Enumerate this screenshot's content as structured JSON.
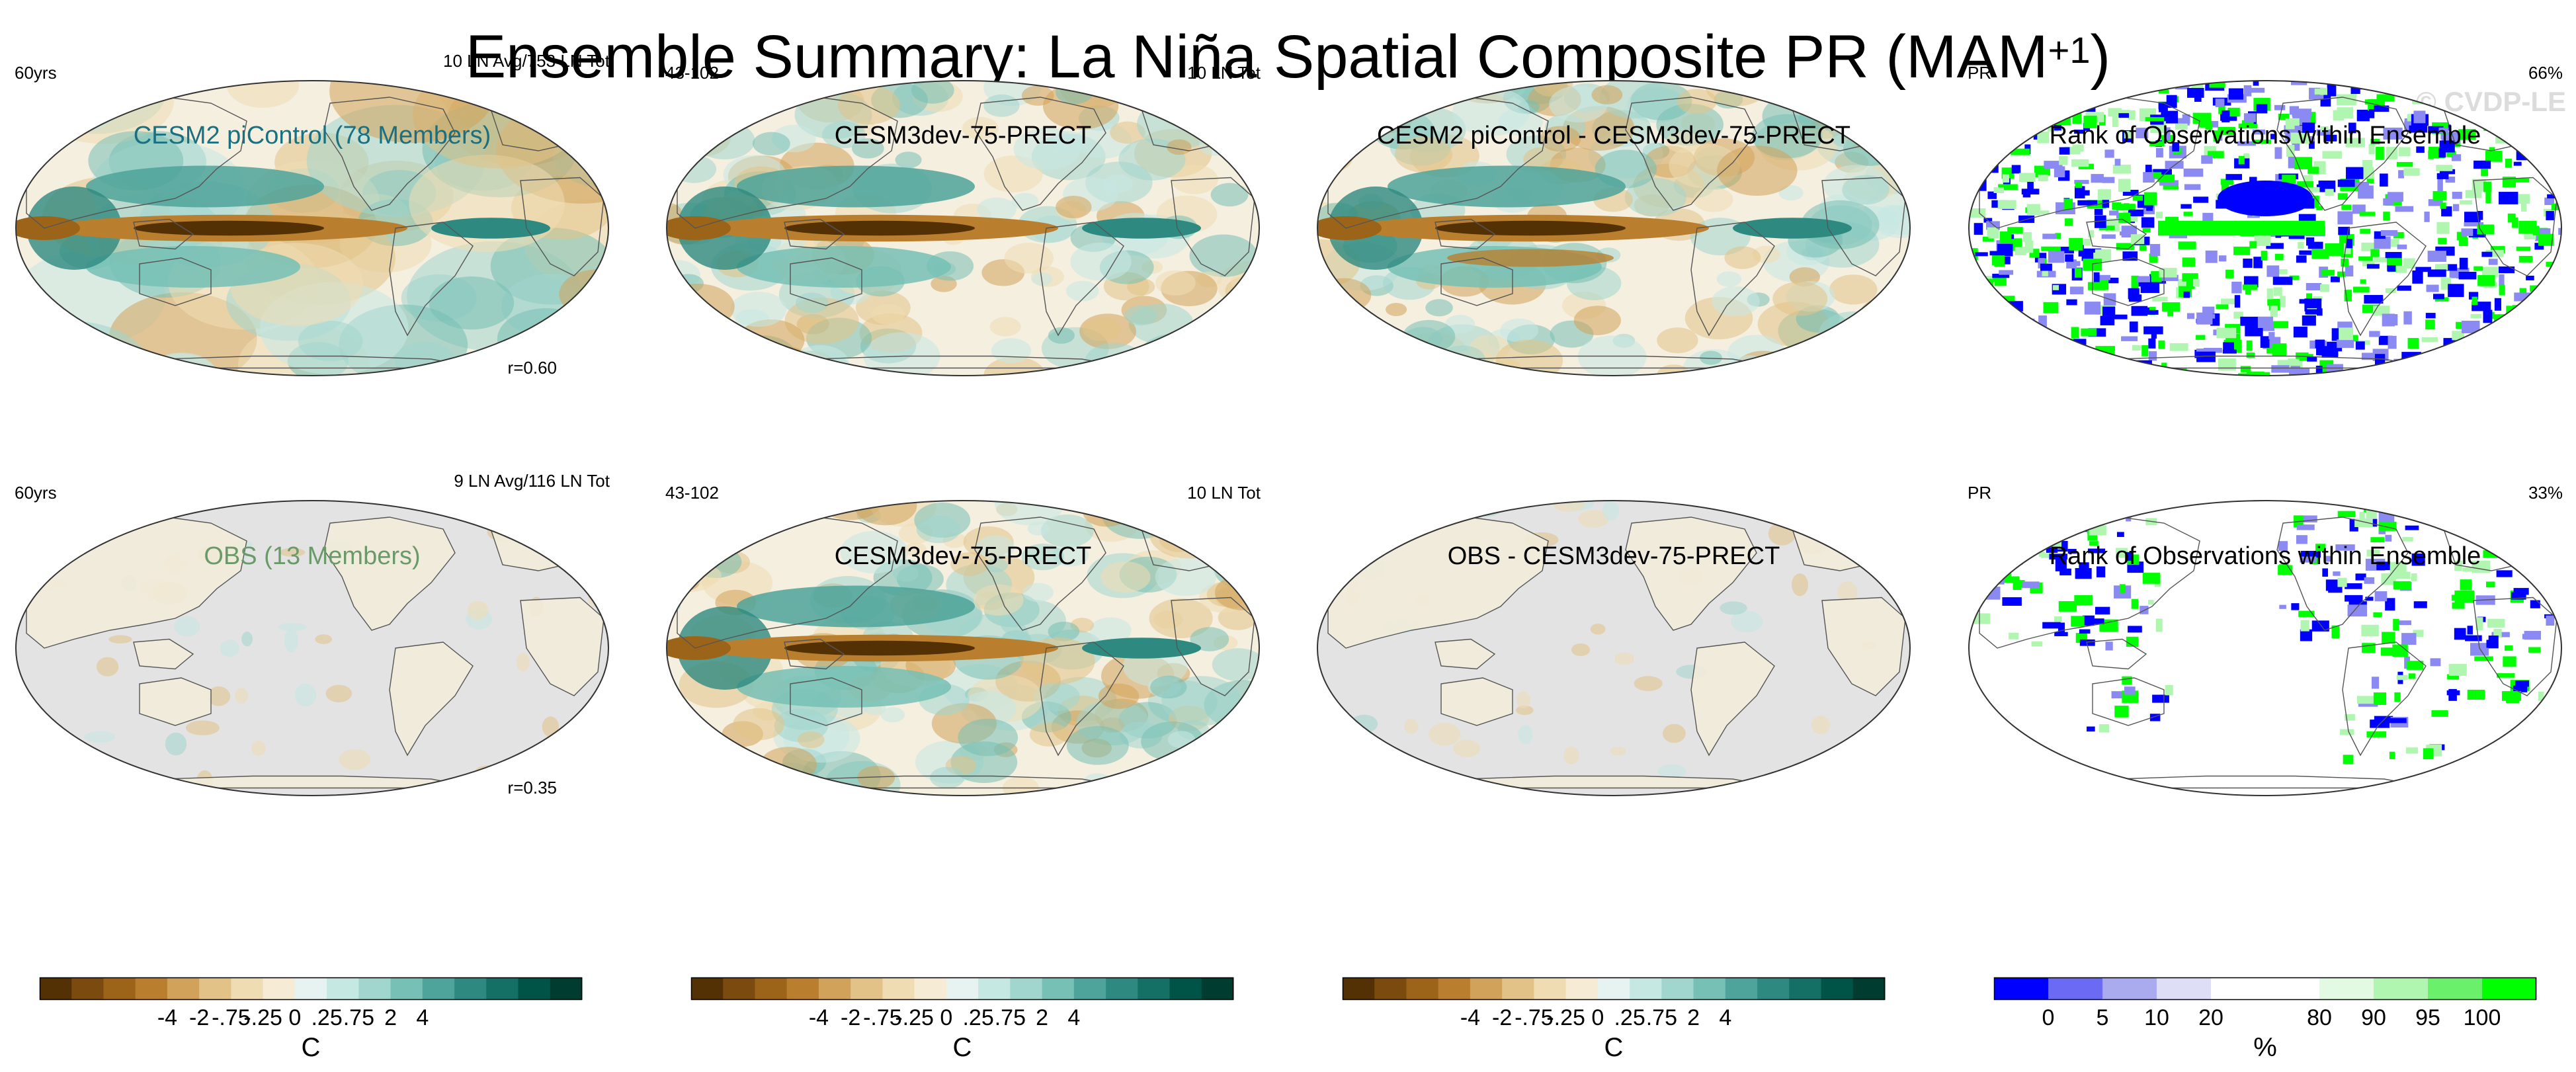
{
  "title": {
    "text": "Ensemble Summary: La Niña Spatial Composite PR (MAM",
    "superscript": "+1",
    "closing": ")"
  },
  "watermark": "© CVDP-LE",
  "panels": [
    {
      "title": "CESM2 piControl (78 Members)",
      "title_color": "#1a6f80",
      "left_label": "60yrs",
      "right_label": "10 LN Avg/753 LN Tot",
      "corr": "r=0.60",
      "style": "model_mean"
    },
    {
      "title": "CESM3dev-75-PRECT",
      "title_color": "#000000",
      "left_label": "43-102",
      "right_label": "10 LN Tot",
      "corr": "",
      "style": "model_single"
    },
    {
      "title": "CESM2 piControl - CESM3dev-75-PRECT",
      "title_color": "#000000",
      "left_label": "",
      "right_label": "",
      "corr": "",
      "style": "difference"
    },
    {
      "title": "Rank of Observations within Ensemble",
      "title_color": "#000000",
      "left_label": "PR",
      "right_label": "66%",
      "corr": "",
      "style": "rank_full"
    },
    {
      "title": "OBS (13 Members)",
      "title_color": "#6a9a6a",
      "left_label": "60yrs",
      "right_label": "9 LN Avg/116 LN Tot",
      "corr": "r=0.35",
      "style": "obs"
    },
    {
      "title": "CESM3dev-75-PRECT",
      "title_color": "#000000",
      "left_label": "43-102",
      "right_label": "10 LN Tot",
      "corr": "",
      "style": "model_single"
    },
    {
      "title": "OBS - CESM3dev-75-PRECT",
      "title_color": "#000000",
      "left_label": "",
      "right_label": "",
      "corr": "",
      "style": "obs_diff"
    },
    {
      "title": "Rank of Observations within Ensemble",
      "title_color": "#000000",
      "left_label": "PR",
      "right_label": "33%",
      "corr": "",
      "style": "rank_land"
    }
  ],
  "colorbars": [
    {
      "unit": "C",
      "labels": [
        "-4",
        "-2",
        "-.75",
        "-.25",
        "0",
        ".25",
        ".75",
        "2",
        "4"
      ],
      "colors": [
        "#543005",
        "#7a4a0f",
        "#9c6419",
        "#b97f2f",
        "#d1a25a",
        "#e2c287",
        "#efdcb2",
        "#f6ecd6",
        "#e6f3f1",
        "#c6e8e3",
        "#a0d6cd",
        "#76c0b5",
        "#4ea39a",
        "#2e8a80",
        "#146f65",
        "#005347",
        "#003c30"
      ]
    },
    {
      "unit": "C",
      "labels": [
        "-4",
        "-2",
        "-.75",
        "-.25",
        "0",
        ".25",
        ".75",
        "2",
        "4"
      ],
      "colors": [
        "#543005",
        "#7a4a0f",
        "#9c6419",
        "#b97f2f",
        "#d1a25a",
        "#e2c287",
        "#efdcb2",
        "#f6ecd6",
        "#e6f3f1",
        "#c6e8e3",
        "#a0d6cd",
        "#76c0b5",
        "#4ea39a",
        "#2e8a80",
        "#146f65",
        "#005347",
        "#003c30"
      ]
    },
    {
      "unit": "C",
      "labels": [
        "-4",
        "-2",
        "-.75",
        "-.25",
        "0",
        ".25",
        ".75",
        "2",
        "4"
      ],
      "colors": [
        "#543005",
        "#7a4a0f",
        "#9c6419",
        "#b97f2f",
        "#d1a25a",
        "#e2c287",
        "#efdcb2",
        "#f6ecd6",
        "#e6f3f1",
        "#c6e8e3",
        "#a0d6cd",
        "#76c0b5",
        "#4ea39a",
        "#2e8a80",
        "#146f65",
        "#005347",
        "#003c30"
      ]
    },
    {
      "unit": "%",
      "labels": [
        "0",
        "5",
        "10",
        "20",
        "80",
        "90",
        "95",
        "100"
      ],
      "colors": [
        "#0000ff",
        "#6a6af5",
        "#aaaaee",
        "#dedef6",
        "#ffffff",
        "#ffffff",
        "#e2fae2",
        "#b0f5b0",
        "#6bf06b",
        "#00ff00"
      ]
    }
  ]
}
